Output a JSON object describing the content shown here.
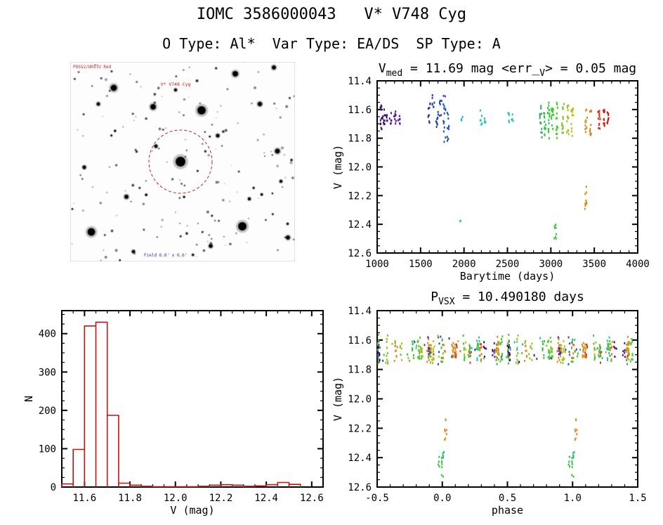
{
  "page": {
    "title": "IOMC 3586000043   V* V748 Cyg",
    "subtitle": "O Type: Al*  Var Type: EA/DS  SP Type: A"
  },
  "finding_chart": {
    "top_left_label": "POSS2/UKSTU Red",
    "target_label": "V* V748 Cyg",
    "bottom_label": "Field 6.6' x 6.6'",
    "label_color": "#cc2222",
    "bottom_label_color": "#2233bb",
    "circle_color": "#cc2222",
    "seed": 42,
    "n_faint_stars": 175,
    "bright_stars": [
      [
        187,
        69,
        6
      ],
      [
        118,
        64,
        4
      ],
      [
        62,
        37,
        4.5
      ],
      [
        157,
        142,
        7
      ],
      [
        30,
        242,
        5.5
      ],
      [
        245,
        234,
        6
      ],
      [
        295,
        127,
        3.5
      ],
      [
        80,
        192,
        3
      ],
      [
        235,
        17,
        4
      ],
      [
        290,
        8,
        3
      ],
      [
        310,
        250,
        3
      ],
      [
        200,
        262,
        2.8
      ],
      [
        122,
        120,
        2.5
      ],
      [
        40,
        60,
        2.5
      ],
      [
        270,
        60,
        3.2
      ],
      [
        150,
        40,
        2.2
      ],
      [
        330,
        180,
        2.4
      ],
      [
        20,
        150,
        2.6
      ],
      [
        90,
        270,
        2.4
      ],
      [
        300,
        170,
        2.2
      ],
      [
        210,
        105,
        2.6
      ],
      [
        255,
        195,
        2.2
      ]
    ]
  },
  "chart_data": [
    {
      "id": "lightcurve",
      "type": "scatter",
      "title_segments": [
        [
          "t",
          "V"
        ],
        [
          "s",
          "med"
        ],
        [
          "t",
          " = 11.69 mag <err_"
        ],
        [
          "s",
          "V"
        ],
        [
          "t",
          "> = 0.05 mag"
        ]
      ],
      "xlabel": "Barytime (days)",
      "ylabel": "V (mag)",
      "xlim": [
        1000,
        4000
      ],
      "ylim": [
        11.4,
        12.6
      ],
      "xticks": [
        1000,
        1500,
        2000,
        2500,
        3000,
        3500,
        4000
      ],
      "yticks": [
        11.4,
        11.6,
        11.8,
        12.0,
        12.2,
        12.4,
        12.6
      ],
      "x_minor_div": 5,
      "y_minor_div": 4,
      "x_decimals": 0,
      "y_decimals": 1,
      "seed": 3,
      "clusters": [
        {
          "t": 1045,
          "v": [
            11.57,
            11.76
          ],
          "n": 12,
          "color": "#3c0f6e"
        },
        {
          "t": 1075,
          "v": [
            11.6,
            11.73
          ],
          "n": 9,
          "color": "#3c0f6e"
        },
        {
          "t": 1110,
          "v": [
            11.61,
            11.69
          ],
          "n": 6,
          "color": "#46127f"
        },
        {
          "t": 1155,
          "v": [
            11.62,
            11.7
          ],
          "n": 6,
          "color": "#50158f"
        },
        {
          "t": 1205,
          "v": [
            11.59,
            11.73
          ],
          "n": 8,
          "color": "#5a18a0"
        },
        {
          "t": 1250,
          "v": [
            11.62,
            11.7
          ],
          "n": 6,
          "color": "#5a18a0"
        },
        {
          "t": 1600,
          "v": [
            11.55,
            11.7
          ],
          "n": 9,
          "color": "#2c2fa8"
        },
        {
          "t": 1645,
          "v": [
            11.5,
            11.6
          ],
          "n": 7,
          "color": "#2c35b2"
        },
        {
          "t": 1690,
          "v": [
            11.6,
            11.78
          ],
          "n": 10,
          "color": "#2440c0"
        },
        {
          "t": 1730,
          "v": [
            11.53,
            11.66
          ],
          "n": 7,
          "color": "#2448c8"
        },
        {
          "t": 1775,
          "v": [
            11.5,
            11.83
          ],
          "n": 15,
          "color": "#1f50cc"
        },
        {
          "t": 1815,
          "v": [
            11.58,
            11.84
          ],
          "n": 12,
          "color": "#2058d0"
        },
        {
          "t": 1950,
          "v": [
            12.36,
            12.4
          ],
          "n": 2,
          "color": "#18b8c8"
        },
        {
          "t": 1975,
          "v": [
            11.62,
            11.69
          ],
          "n": 4,
          "color": "#18b8c8"
        },
        {
          "t": 2195,
          "v": [
            11.6,
            11.71
          ],
          "n": 6,
          "color": "#16c0c0"
        },
        {
          "t": 2245,
          "v": [
            11.63,
            11.7
          ],
          "n": 4,
          "color": "#16c0c0"
        },
        {
          "t": 2510,
          "v": [
            11.62,
            11.7
          ],
          "n": 5,
          "color": "#20c8b4"
        },
        {
          "t": 2555,
          "v": [
            11.63,
            11.7
          ],
          "n": 4,
          "color": "#20c8b4"
        },
        {
          "t": 2885,
          "v": [
            11.55,
            11.8
          ],
          "n": 16,
          "color": "#2eb45a"
        },
        {
          "t": 2930,
          "v": [
            11.57,
            11.78
          ],
          "n": 13,
          "color": "#34bc48"
        },
        {
          "t": 2975,
          "v": [
            11.55,
            11.82
          ],
          "n": 16,
          "color": "#3ac438"
        },
        {
          "t": 3020,
          "v": [
            11.58,
            11.78
          ],
          "n": 12,
          "color": "#40c830"
        },
        {
          "t": 3050,
          "v": [
            12.38,
            12.52
          ],
          "n": 9,
          "color": "#3cc83c"
        },
        {
          "t": 3070,
          "v": [
            11.55,
            11.8
          ],
          "n": 14,
          "color": "#48cc28"
        },
        {
          "t": 3140,
          "v": [
            11.55,
            11.8
          ],
          "n": 15,
          "color": "#7cc81e"
        },
        {
          "t": 3195,
          "v": [
            11.55,
            11.78
          ],
          "n": 14,
          "color": "#a0c418"
        },
        {
          "t": 3245,
          "v": [
            11.57,
            11.8
          ],
          "n": 12,
          "color": "#c0bc10"
        },
        {
          "t": 3400,
          "v": [
            12.13,
            12.3
          ],
          "n": 10,
          "color": "#e08818"
        },
        {
          "t": 3405,
          "v": [
            11.6,
            11.8
          ],
          "n": 12,
          "color": "#e09018"
        },
        {
          "t": 3455,
          "v": [
            11.58,
            11.78
          ],
          "n": 10,
          "color": "#e07c14"
        },
        {
          "t": 3555,
          "v": [
            11.6,
            11.75
          ],
          "n": 12,
          "color": "#d8301a"
        },
        {
          "t": 3610,
          "v": [
            11.6,
            11.73
          ],
          "n": 10,
          "color": "#d02212"
        },
        {
          "t": 3655,
          "v": [
            11.62,
            11.73
          ],
          "n": 8,
          "color": "#c81410"
        }
      ]
    },
    {
      "id": "histogram",
      "type": "bar",
      "xlabel": "V (mag)",
      "ylabel": "N",
      "xlim": [
        11.5,
        12.65
      ],
      "ylim": [
        460,
        0
      ],
      "xticks": [
        11.6,
        11.8,
        12.0,
        12.2,
        12.4,
        12.6
      ],
      "yticks": [
        0,
        100,
        200,
        300,
        400
      ],
      "x_minor_div": 4,
      "y_minor_div": 4,
      "x_decimals": 1,
      "y_decimals": 0,
      "color": "#cc1111",
      "bin_start": 11.5,
      "bin_width": 0.05,
      "counts": [
        8,
        98,
        420,
        430,
        187,
        10,
        5,
        2,
        1,
        1,
        1,
        1,
        2,
        5,
        6,
        5,
        2,
        3,
        6,
        12,
        7
      ]
    },
    {
      "id": "phase",
      "type": "scatter",
      "title_segments": [
        [
          "t",
          "P"
        ],
        [
          "s",
          "VSX"
        ],
        [
          "t",
          " = 10.490180 days"
        ]
      ],
      "xlabel": "phase",
      "ylabel": "V (mag)",
      "xlim": [
        -0.5,
        1.5
      ],
      "ylim": [
        11.4,
        12.6
      ],
      "xticks": [
        -0.5,
        0.0,
        0.5,
        1.0,
        1.5
      ],
      "yticks": [
        11.4,
        11.6,
        11.8,
        12.0,
        12.2,
        12.4,
        12.6
      ],
      "x_minor_div": 5,
      "y_minor_div": 4,
      "x_decimals": 1,
      "y_decimals": 1,
      "seed": 7,
      "band": {
        "v_center": 11.67,
        "v_spread": 0.11,
        "clumps": 36,
        "min_pts": 4,
        "max_pts": 11,
        "singles": 70
      },
      "palette": [
        "#3c0f6e",
        "#5a18a0",
        "#2440c0",
        "#1f50cc",
        "#18b8c8",
        "#16c0c0",
        "#20c8b4",
        "#2eb45a",
        "#3ac438",
        "#40c830",
        "#48cc28",
        "#7cc81e",
        "#a0c418",
        "#c0bc10",
        "#e09018",
        "#e07c14",
        "#d8301a",
        "#d02212",
        "#3ac438",
        "#40c830",
        "#7cc81e",
        "#e09018"
      ],
      "eclipses": [
        {
          "phase": 0.0,
          "v": [
            12.32,
            12.55
          ],
          "n": 10,
          "color": "#3cc83c"
        },
        {
          "phase": 0.025,
          "v": [
            12.12,
            12.3
          ],
          "n": 8,
          "color": "#e08818"
        },
        {
          "phase": -0.03,
          "v": [
            12.36,
            12.48
          ],
          "n": 4,
          "color": "#34bc48"
        },
        {
          "phase": 0.01,
          "v": [
            12.36,
            12.4
          ],
          "n": 2,
          "color": "#18b8c8"
        }
      ]
    }
  ]
}
